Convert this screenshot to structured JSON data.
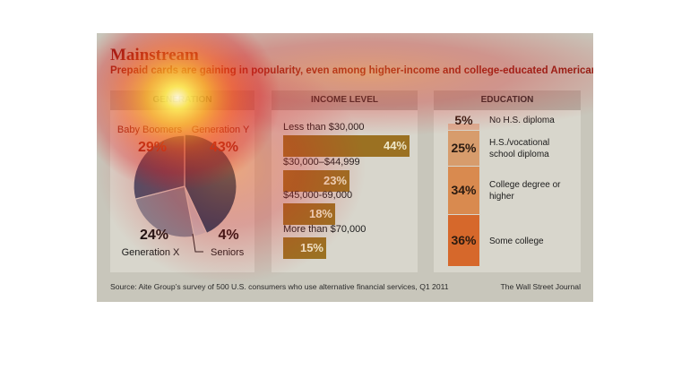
{
  "title": "Mainstream",
  "subtitle": "Prepaid cards are gaining in popularity, even among higher-income and college-educated Americans",
  "source": "Source: Aite Group’s survey of 500 U.S. consumers who use alternative financial services, Q1 2011",
  "credit": "The Wall Street Journal",
  "chart_data": [
    {
      "type": "pie",
      "header": "GENERATION",
      "slices": [
        {
          "label": "Generation Y",
          "value": 43,
          "text": "43%",
          "color": "#174766"
        },
        {
          "label": "Seniors",
          "value": 4,
          "text": "4%",
          "color": "#c2c5c8"
        },
        {
          "label": "Generation X",
          "value": 24,
          "text": "24%",
          "color": "#7e8a98"
        },
        {
          "label": "Baby Boomers",
          "value": 29,
          "text": "29%",
          "color": "#3e5470"
        }
      ]
    },
    {
      "type": "bar",
      "orientation": "horizontal",
      "header": "INCOME LEVEL",
      "categories": [
        "Less than $30,000",
        "$30,000–$44,999",
        "$45,000-69,000",
        "More than $70,000"
      ],
      "values": [
        44,
        23,
        18,
        15
      ],
      "value_labels": [
        "44%",
        "23%",
        "18%",
        "15%"
      ],
      "color": "#9b7122"
    },
    {
      "type": "bar",
      "orientation": "stacked-vertical",
      "header": "EDUCATION",
      "categories": [
        "No H.S. diploma",
        "H.S./vocational school diploma",
        "College degree or higher",
        "Some college"
      ],
      "values": [
        5,
        25,
        34,
        36
      ],
      "value_labels": [
        "5%",
        "25%",
        "34%",
        "36%"
      ],
      "colors": [
        "#dbaf94",
        "#d79c6c",
        "#d98a4f",
        "#d6682b"
      ],
      "label_lines": [
        [
          "No H.S. diploma"
        ],
        [
          "H.S./vocational",
          "school diploma"
        ],
        [
          "College degree or",
          "higher"
        ],
        [
          "Some college"
        ]
      ]
    }
  ]
}
